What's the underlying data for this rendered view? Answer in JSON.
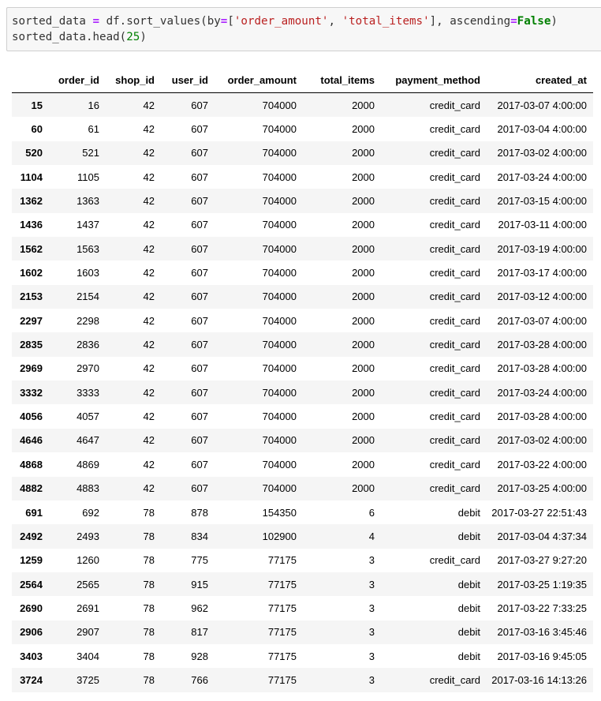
{
  "cell": {
    "line1": {
      "a": "sorted_data ",
      "eq": "=",
      "b": " df.sort_values(by",
      "eq2": "=",
      "c": "[",
      "s1": "'order_amount'",
      "d": ", ",
      "s2": "'total_items'",
      "e": "], ascending",
      "eq3": "=",
      "kw": "False",
      "f": ")"
    },
    "line2": {
      "a": "sorted_data.head(",
      "num": "25",
      "b": ")"
    }
  },
  "table": {
    "index_header": "",
    "columns": [
      "order_id",
      "shop_id",
      "user_id",
      "order_amount",
      "total_items",
      "payment_method",
      "created_at"
    ],
    "rows": [
      {
        "index": "15",
        "cells": [
          "16",
          "42",
          "607",
          "704000",
          "2000",
          "credit_card",
          "2017-03-07 4:00:00"
        ]
      },
      {
        "index": "60",
        "cells": [
          "61",
          "42",
          "607",
          "704000",
          "2000",
          "credit_card",
          "2017-03-04 4:00:00"
        ]
      },
      {
        "index": "520",
        "cells": [
          "521",
          "42",
          "607",
          "704000",
          "2000",
          "credit_card",
          "2017-03-02 4:00:00"
        ]
      },
      {
        "index": "1104",
        "cells": [
          "1105",
          "42",
          "607",
          "704000",
          "2000",
          "credit_card",
          "2017-03-24 4:00:00"
        ]
      },
      {
        "index": "1362",
        "cells": [
          "1363",
          "42",
          "607",
          "704000",
          "2000",
          "credit_card",
          "2017-03-15 4:00:00"
        ]
      },
      {
        "index": "1436",
        "cells": [
          "1437",
          "42",
          "607",
          "704000",
          "2000",
          "credit_card",
          "2017-03-11 4:00:00"
        ]
      },
      {
        "index": "1562",
        "cells": [
          "1563",
          "42",
          "607",
          "704000",
          "2000",
          "credit_card",
          "2017-03-19 4:00:00"
        ]
      },
      {
        "index": "1602",
        "cells": [
          "1603",
          "42",
          "607",
          "704000",
          "2000",
          "credit_card",
          "2017-03-17 4:00:00"
        ]
      },
      {
        "index": "2153",
        "cells": [
          "2154",
          "42",
          "607",
          "704000",
          "2000",
          "credit_card",
          "2017-03-12 4:00:00"
        ]
      },
      {
        "index": "2297",
        "cells": [
          "2298",
          "42",
          "607",
          "704000",
          "2000",
          "credit_card",
          "2017-03-07 4:00:00"
        ]
      },
      {
        "index": "2835",
        "cells": [
          "2836",
          "42",
          "607",
          "704000",
          "2000",
          "credit_card",
          "2017-03-28 4:00:00"
        ]
      },
      {
        "index": "2969",
        "cells": [
          "2970",
          "42",
          "607",
          "704000",
          "2000",
          "credit_card",
          "2017-03-28 4:00:00"
        ]
      },
      {
        "index": "3332",
        "cells": [
          "3333",
          "42",
          "607",
          "704000",
          "2000",
          "credit_card",
          "2017-03-24 4:00:00"
        ]
      },
      {
        "index": "4056",
        "cells": [
          "4057",
          "42",
          "607",
          "704000",
          "2000",
          "credit_card",
          "2017-03-28 4:00:00"
        ]
      },
      {
        "index": "4646",
        "cells": [
          "4647",
          "42",
          "607",
          "704000",
          "2000",
          "credit_card",
          "2017-03-02 4:00:00"
        ]
      },
      {
        "index": "4868",
        "cells": [
          "4869",
          "42",
          "607",
          "704000",
          "2000",
          "credit_card",
          "2017-03-22 4:00:00"
        ]
      },
      {
        "index": "4882",
        "cells": [
          "4883",
          "42",
          "607",
          "704000",
          "2000",
          "credit_card",
          "2017-03-25 4:00:00"
        ]
      },
      {
        "index": "691",
        "cells": [
          "692",
          "78",
          "878",
          "154350",
          "6",
          "debit",
          "2017-03-27 22:51:43"
        ]
      },
      {
        "index": "2492",
        "cells": [
          "2493",
          "78",
          "834",
          "102900",
          "4",
          "debit",
          "2017-03-04 4:37:34"
        ]
      },
      {
        "index": "1259",
        "cells": [
          "1260",
          "78",
          "775",
          "77175",
          "3",
          "credit_card",
          "2017-03-27 9:27:20"
        ]
      },
      {
        "index": "2564",
        "cells": [
          "2565",
          "78",
          "915",
          "77175",
          "3",
          "debit",
          "2017-03-25 1:19:35"
        ]
      },
      {
        "index": "2690",
        "cells": [
          "2691",
          "78",
          "962",
          "77175",
          "3",
          "debit",
          "2017-03-22 7:33:25"
        ]
      },
      {
        "index": "2906",
        "cells": [
          "2907",
          "78",
          "817",
          "77175",
          "3",
          "debit",
          "2017-03-16 3:45:46"
        ]
      },
      {
        "index": "3403",
        "cells": [
          "3404",
          "78",
          "928",
          "77175",
          "3",
          "debit",
          "2017-03-16 9:45:05"
        ]
      },
      {
        "index": "3724",
        "cells": [
          "3725",
          "78",
          "766",
          "77175",
          "3",
          "credit_card",
          "2017-03-16 14:13:26"
        ]
      }
    ]
  },
  "colors": {
    "cell_background": "#f7f7f7",
    "cell_border": "#cfcfcf",
    "operator": "#aa22ff",
    "string": "#ba2121",
    "keyword": "#008000",
    "striped_row": "#f5f5f5"
  }
}
